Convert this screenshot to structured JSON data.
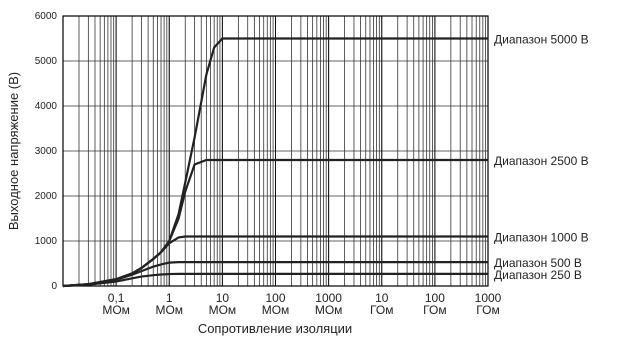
{
  "chart_data": {
    "type": "line",
    "xlabel": "Сопротивление изоляции",
    "ylabel": "Выходное напряжение (В)",
    "x": [
      0.01,
      0.03,
      0.1,
      0.2,
      0.3,
      0.5,
      0.7,
      1,
      1.5,
      2,
      3,
      5,
      7,
      10,
      1000000
    ],
    "series": [
      {
        "name": "Диапазон 5000 В",
        "color": "#222222",
        "values": [
          0,
          40,
          150,
          280,
          400,
          600,
          750,
          1000,
          1600,
          2300,
          3300,
          4700,
          5300,
          5500,
          5500
        ]
      },
      {
        "name": "Диапазон 2500 В",
        "color": "#222222",
        "values": [
          0,
          40,
          150,
          280,
          400,
          600,
          750,
          1000,
          1500,
          2100,
          2700,
          2800,
          2800,
          2800,
          2800
        ]
      },
      {
        "name": "Диапазон 1000 В",
        "color": "#222222",
        "values": [
          0,
          40,
          150,
          280,
          400,
          600,
          750,
          950,
          1080,
          1100,
          1100,
          1100,
          1100,
          1100,
          1100
        ]
      },
      {
        "name": "Диапазон 500 В",
        "color": "#222222",
        "values": [
          0,
          40,
          140,
          250,
          330,
          430,
          480,
          520,
          530,
          530,
          530,
          530,
          530,
          530,
          530
        ]
      },
      {
        "name": "Диапазон 250 В",
        "color": "#222222",
        "values": [
          0,
          30,
          100,
          170,
          210,
          240,
          255,
          265,
          270,
          270,
          270,
          270,
          270,
          270,
          270
        ]
      }
    ],
    "xscale": "log",
    "xlim": [
      0.01,
      1000000
    ],
    "xticks": [
      {
        "value": 0.1,
        "label": "0,1\nМОм"
      },
      {
        "value": 1,
        "label": "1\nМОм"
      },
      {
        "value": 10,
        "label": "10\nМОм"
      },
      {
        "value": 100,
        "label": "100\nМОм"
      },
      {
        "value": 1000,
        "label": "1000\nМОм"
      },
      {
        "value": 10000,
        "label": "10\nГОм"
      },
      {
        "value": 100000,
        "label": "100\nГОм"
      },
      {
        "value": 1000000,
        "label": "1000\nГОм"
      }
    ],
    "ylim": [
      0,
      6000
    ],
    "yticks": [
      0,
      1000,
      2000,
      3000,
      4000,
      5000,
      6000
    ],
    "grid": true,
    "minor_grid": true
  }
}
